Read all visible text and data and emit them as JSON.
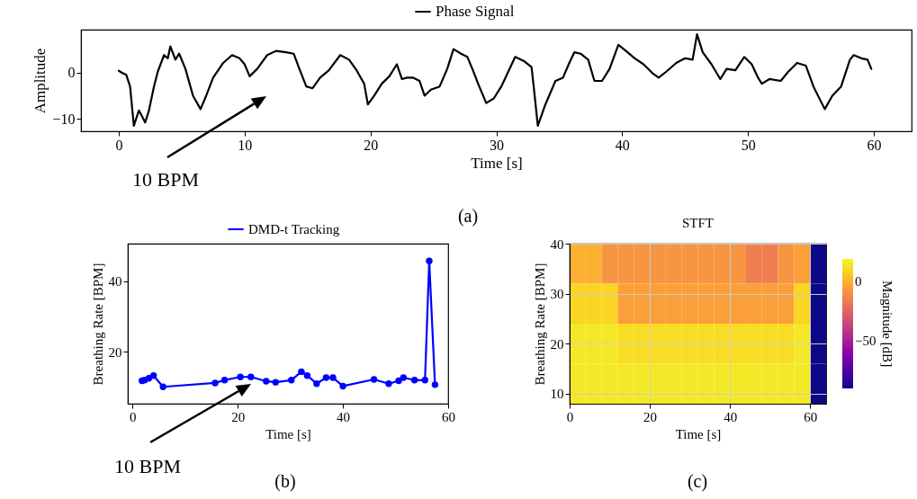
{
  "chart_data": [
    {
      "type": "line",
      "xlabel": "Time [s]",
      "ylabel": "Amplitude",
      "xlim": [
        -3,
        63
      ],
      "ylim": [
        -12.7,
        9.3
      ],
      "xticks": [
        0,
        10,
        20,
        30,
        40,
        50,
        60
      ],
      "yticks": [
        -10,
        0
      ],
      "legend": "top",
      "annotations": [
        "10 BPM",
        "(a)"
      ],
      "series": [
        {
          "name": "Phase Signal",
          "color": "#000000",
          "x": [
            0,
            0.3,
            0.6,
            0.9,
            1.2,
            1.6,
            1.8,
            2.1,
            2.4,
            2.8,
            3.1,
            3.6,
            3.9,
            4.1,
            4.5,
            4.8,
            5.3,
            5.9,
            6.5,
            6.95,
            7.5,
            8.3,
            9.0,
            9.6,
            10,
            10.4,
            11,
            11.8,
            12.5,
            13.3,
            13.9,
            14.3,
            14.9,
            15.4,
            16,
            16.7,
            17.6,
            18.3,
            18.9,
            19.5,
            19.8,
            20.3,
            20.9,
            21.5,
            22.1,
            22.5,
            22.9,
            23.4,
            23.9,
            24.3,
            24.8,
            25.5,
            26.1,
            26.6,
            27.2,
            27.7,
            28.1,
            28.6,
            29.2,
            29.8,
            30.4,
            31,
            31.5,
            32.2,
            32.8,
            33,
            33.3,
            33.9,
            34.7,
            35.3,
            35.8,
            36.2,
            36.7,
            37.3,
            37.8,
            38.4,
            39,
            39.7,
            40.3,
            41,
            41.7,
            42.4,
            42.9,
            43.5,
            44.3,
            45,
            45.6,
            45.95,
            46.4,
            47.1,
            47.8,
            48.3,
            49,
            49.7,
            50.3,
            50.8,
            51.1,
            51.7,
            52.6,
            53.2,
            53.9,
            54.6,
            55.2,
            55.8,
            56.1,
            56.7,
            57.4,
            58.1,
            58.4,
            59,
            59.5,
            59.8
          ],
          "values": [
            0.4,
            -0.1,
            -0.5,
            -3,
            -11.5,
            -8.2,
            -9.2,
            -10.8,
            -8.2,
            -3,
            0.2,
            3.8,
            3.1,
            5.7,
            2.8,
            4.1,
            0.8,
            -5,
            -7.9,
            -5,
            -1.1,
            2.1,
            3.8,
            3.1,
            1.8,
            -0.8,
            0.8,
            3.8,
            4.7,
            4.4,
            4.1,
            1.2,
            -3,
            -3.4,
            -1.1,
            0.5,
            3.8,
            2.8,
            0.5,
            -2.4,
            -6.9,
            -5,
            -2.4,
            -0.8,
            1.8,
            -1.4,
            -1.1,
            -1.1,
            -1.8,
            -5,
            -3.7,
            -3,
            0.8,
            5.1,
            4.1,
            3.4,
            0.8,
            -2.7,
            -6.6,
            -5.6,
            -3,
            0.5,
            3.4,
            2.5,
            1.2,
            -3.7,
            -11.5,
            -6.9,
            -1.8,
            -1.1,
            2.1,
            4.4,
            4.1,
            2.8,
            -1.8,
            -1.8,
            0.8,
            6,
            4.7,
            3.1,
            1.8,
            -0.1,
            -1.1,
            0.2,
            2.1,
            3.1,
            2.8,
            8.3,
            4.4,
            1.8,
            -1.4,
            0.8,
            0.5,
            3.4,
            1.8,
            -1.1,
            -2.4,
            -1.4,
            -1.8,
            0.2,
            2.1,
            1.5,
            -3,
            -6.3,
            -7.9,
            -5,
            -3,
            2.8,
            3.8,
            3.1,
            2.8,
            0.8
          ]
        }
      ]
    },
    {
      "type": "line",
      "xlabel": "Time [s]",
      "ylabel": "Breathing Rate [BPM]",
      "xlim": [
        -0.9,
        60
      ],
      "ylim": [
        5.2,
        50.7
      ],
      "xticks": [
        0,
        20,
        40,
        60
      ],
      "yticks": [
        20,
        40
      ],
      "legend": "top",
      "marker": "circle",
      "annotations": [
        "10 BPM",
        "(b)"
      ],
      "series": [
        {
          "name": "DMD-t Tracking",
          "color": "#0000ff",
          "x": [
            1.8,
            2.3,
            3.1,
            4,
            5.8,
            15.7,
            17.5,
            20.5,
            22.5,
            25.4,
            27.2,
            30.2,
            32.1,
            33.2,
            35,
            36.8,
            38.1,
            40,
            45.9,
            48.7,
            50.6,
            51.5,
            53.6,
            55.6,
            56.4,
            57.5
          ],
          "values": [
            11.7,
            11.9,
            12.4,
            13.2,
            10,
            11.1,
            11.9,
            12.8,
            12.8,
            11.6,
            11.3,
            11.9,
            14.3,
            13.2,
            10.9,
            12.6,
            12.6,
            10.2,
            12.1,
            10.9,
            11.7,
            12.6,
            11.9,
            11.9,
            45.8,
            10.6
          ]
        }
      ]
    },
    {
      "type": "heatmap",
      "title": "STFT",
      "xlabel": "Time [s]",
      "ylabel": "Breathing Rate [BPM]",
      "clabel": "Magnitude [dB]",
      "xlim": [
        0,
        64
      ],
      "ylim": [
        8,
        40
      ],
      "xticks": [
        0,
        20,
        40,
        60
      ],
      "yticks": [
        10,
        20,
        30,
        40
      ],
      "clim": [
        -90,
        19
      ],
      "cticks": [
        -50,
        0
      ],
      "grid": true,
      "annotations": [
        "(c)"
      ],
      "x": [
        2,
        6,
        10,
        14,
        18,
        22,
        26,
        30,
        34,
        38,
        42,
        46,
        50,
        54,
        58,
        62
      ],
      "y": [
        36,
        28,
        20,
        12
      ],
      "cells": [
        [
          0,
          0,
          -8,
          -8,
          -8,
          -8,
          -8,
          -8,
          -8,
          -8,
          -8,
          -15,
          -15,
          -8,
          -5,
          -90
        ],
        [
          10,
          10,
          10,
          -5,
          -5,
          -5,
          -5,
          -5,
          -5,
          -5,
          -5,
          -5,
          -5,
          -5,
          10,
          -90
        ],
        [
          15,
          15,
          15,
          12,
          12,
          12,
          12,
          12,
          12,
          12,
          12,
          12,
          12,
          12,
          15,
          -90
        ],
        [
          15,
          15,
          15,
          15,
          15,
          15,
          15,
          15,
          15,
          15,
          15,
          15,
          15,
          15,
          15,
          -90
        ]
      ]
    }
  ]
}
